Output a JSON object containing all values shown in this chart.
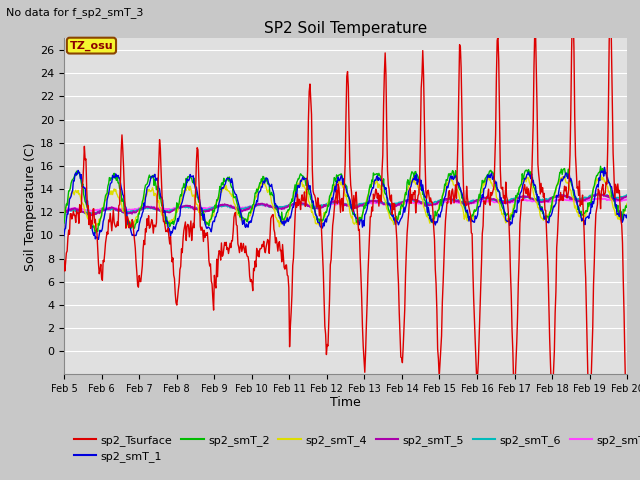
{
  "title": "SP2 Soil Temperature",
  "subtitle": "No data for f_sp2_smT_3",
  "xlabel": "Time",
  "ylabel": "Soil Temperature (C)",
  "ylim": [
    -2,
    27
  ],
  "yticks": [
    0,
    2,
    4,
    6,
    8,
    10,
    12,
    14,
    16,
    18,
    20,
    22,
    24,
    26
  ],
  "tz_label": "TZ_osu",
  "fig_bg_color": "#c8c8c8",
  "plot_bg_color": "#e0e0e0",
  "line_colors": {
    "sp2_Tsurface": "#dd0000",
    "sp2_smT_1": "#0000dd",
    "sp2_smT_2": "#00bb00",
    "sp2_smT_4": "#dddd00",
    "sp2_smT_5": "#aa00aa",
    "sp2_smT_6": "#00bbbb",
    "sp2_smT_7": "#ff44ff"
  },
  "x_tick_labels": [
    "Feb 5",
    "Feb 6",
    "Feb 7",
    "Feb 8",
    "Feb 9",
    "Feb 10",
    "Feb 11",
    "Feb 12",
    "Feb 13",
    "Feb 14",
    "Feb 15",
    "Feb 16",
    "Feb 17",
    "Feb 18",
    "Feb 19",
    "Feb 20"
  ]
}
